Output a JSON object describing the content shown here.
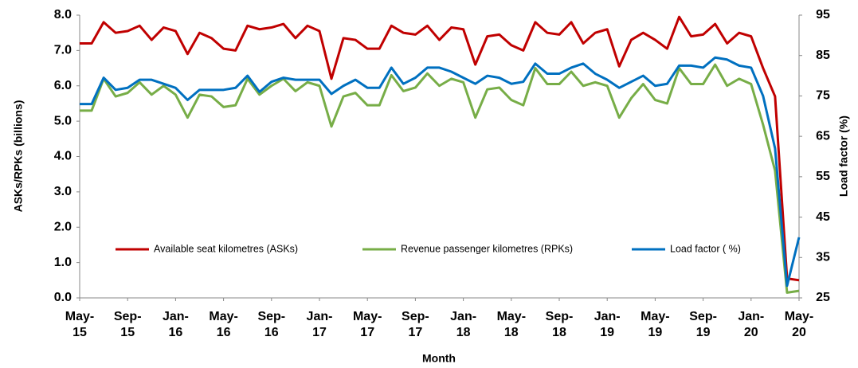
{
  "chart_data": {
    "type": "line",
    "x_label": "Month",
    "y_label": "ASKs/RPKs (billions)",
    "y2_label": "Load factor (%)",
    "categories": [
      "May-15",
      null,
      null,
      null,
      "Sep-15",
      null,
      null,
      null,
      "Jan-16",
      null,
      null,
      null,
      "May-16",
      null,
      null,
      null,
      "Sep-16",
      null,
      null,
      null,
      "Jan-17",
      null,
      null,
      null,
      "May-17",
      null,
      null,
      null,
      "Sep-17",
      null,
      null,
      null,
      "Jan-18",
      null,
      null,
      null,
      "May-18",
      null,
      null,
      null,
      "Sep-18",
      null,
      null,
      null,
      "Jan-19",
      null,
      null,
      null,
      "May-19",
      null,
      null,
      null,
      "Sep-19",
      null,
      null,
      null,
      "Jan-20",
      null,
      null,
      null,
      "May-20"
    ],
    "series": [
      {
        "name": "Available seat kilometres (ASKs)",
        "color": "#c00000",
        "values": [
          7.2,
          7.2,
          7.8,
          7.5,
          7.55,
          7.7,
          7.3,
          7.65,
          7.55,
          6.9,
          7.5,
          7.35,
          7.05,
          7.0,
          7.7,
          7.6,
          7.65,
          7.75,
          7.35,
          7.7,
          7.55,
          6.2,
          7.35,
          7.3,
          7.05,
          7.05,
          7.7,
          7.5,
          7.45,
          7.7,
          7.3,
          7.65,
          7.6,
          6.6,
          7.4,
          7.45,
          7.15,
          7.0,
          7.8,
          7.5,
          7.45,
          7.8,
          7.2,
          7.5,
          7.6,
          6.55,
          7.3,
          7.5,
          7.3,
          7.05,
          7.95,
          7.4,
          7.45,
          7.75,
          7.2,
          7.5,
          7.4,
          6.5,
          5.7,
          0.55,
          0.5
        ]
      },
      {
        "name": "Revenue passenger kilometres (RPKs)",
        "color": "#77ad47",
        "values": [
          5.3,
          5.3,
          6.2,
          5.7,
          5.8,
          6.1,
          5.75,
          6.0,
          5.75,
          5.1,
          5.75,
          5.7,
          5.4,
          5.45,
          6.2,
          5.75,
          6.0,
          6.2,
          5.85,
          6.1,
          6.0,
          4.85,
          5.7,
          5.8,
          5.45,
          5.45,
          6.3,
          5.85,
          5.95,
          6.35,
          6.0,
          6.2,
          6.1,
          5.1,
          5.9,
          5.95,
          5.6,
          5.45,
          6.5,
          6.05,
          6.05,
          6.4,
          6.0,
          6.1,
          6.0,
          5.1,
          5.65,
          6.05,
          5.6,
          5.5,
          6.5,
          6.05,
          6.05,
          6.6,
          6.0,
          6.2,
          6.05,
          4.9,
          3.6,
          0.15,
          0.2
        ]
      },
      {
        "name": "Load factor ( %)",
        "color": "#0070c0",
        "axis": "y2",
        "values": [
          73,
          73,
          79.5,
          76.5,
          77,
          79,
          79,
          78,
          77,
          74,
          76.5,
          76.5,
          76.5,
          77,
          80,
          76,
          78.5,
          79.5,
          79,
          79,
          79,
          75.5,
          77.5,
          79,
          77,
          77,
          82,
          78,
          79.5,
          82,
          82,
          81,
          79.5,
          78,
          80,
          79.5,
          78,
          78.5,
          83,
          80.5,
          80.5,
          82,
          83,
          80.5,
          79,
          77,
          78.5,
          80,
          77.5,
          78,
          82.5,
          82.5,
          82,
          84.5,
          84,
          82.5,
          82,
          75,
          62,
          28,
          40
        ]
      }
    ],
    "ylim": [
      0,
      8
    ],
    "yticks": [
      {
        "value": 0,
        "label": "0.0"
      },
      {
        "value": 1,
        "label": "1.0"
      },
      {
        "value": 2,
        "label": "2.0"
      },
      {
        "value": 3,
        "label": "3.0"
      },
      {
        "value": 4,
        "label": "4.0"
      },
      {
        "value": 5,
        "label": "5.0"
      },
      {
        "value": 6,
        "label": "6.0"
      },
      {
        "value": 7,
        "label": "7.0"
      },
      {
        "value": 8,
        "label": "8.0"
      }
    ],
    "y2lim": [
      25,
      95
    ],
    "y2ticks": [
      25,
      35,
      45,
      55,
      65,
      75,
      85,
      95
    ],
    "grid": false,
    "legend": "bottom"
  }
}
